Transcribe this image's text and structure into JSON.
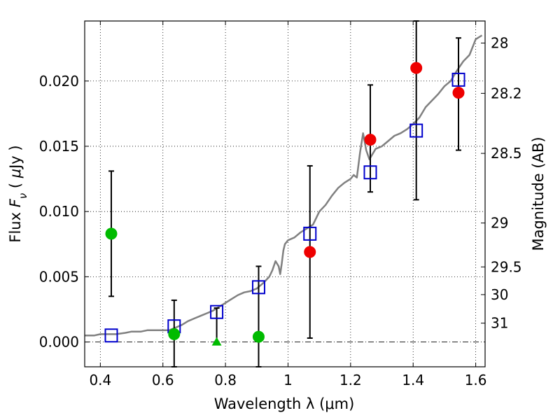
{
  "chart_data": {
    "type": "scatter",
    "xlabel": "Wavelength  λ (μm)",
    "ylabel": "Flux  F_ν  ( μJy )",
    "ylabel_right": "Magnitude (AB)",
    "xlim": [
      0.35,
      1.63
    ],
    "ylim": [
      -0.0019,
      0.0246
    ],
    "grid": true,
    "x_ticks": [
      {
        "value": 0.4,
        "label": "0.4"
      },
      {
        "value": 0.6,
        "label": "0.6"
      },
      {
        "value": 0.8,
        "label": "0.8"
      },
      {
        "value": 1.0,
        "label": "1"
      },
      {
        "value": 1.2,
        "label": "1.2"
      },
      {
        "value": 1.4,
        "label": "1.4"
      },
      {
        "value": 1.6,
        "label": "1.6"
      }
    ],
    "y_ticks": [
      {
        "value": 0.0,
        "label": "0.000"
      },
      {
        "value": 0.005,
        "label": "0.005"
      },
      {
        "value": 0.01,
        "label": "0.010"
      },
      {
        "value": 0.015,
        "label": "0.015"
      },
      {
        "value": 0.02,
        "label": "0.020"
      }
    ],
    "mag_ticks": [
      {
        "value": 28,
        "label": "28"
      },
      {
        "value": 28.2,
        "label": "28.2"
      },
      {
        "value": 28.5,
        "label": "28.5"
      },
      {
        "value": 29,
        "label": "29"
      },
      {
        "value": 29.5,
        "label": "29.5"
      },
      {
        "value": 30,
        "label": "30"
      },
      {
        "value": 31,
        "label": "31"
      }
    ],
    "colors": {
      "template": "#808080",
      "model_box": "#0000cc",
      "detection_green": "#00bb00",
      "detection_red": "#ee0000",
      "errorbar": "#000000"
    },
    "series": [
      {
        "kind": "template_spectrum",
        "x": [
          0.35,
          0.38,
          0.4,
          0.42,
          0.45,
          0.48,
          0.5,
          0.53,
          0.55,
          0.58,
          0.6,
          0.62,
          0.64,
          0.66,
          0.68,
          0.7,
          0.72,
          0.74,
          0.76,
          0.78,
          0.8,
          0.82,
          0.84,
          0.86,
          0.88,
          0.9,
          0.92,
          0.94,
          0.95,
          0.96,
          0.97,
          0.975,
          0.98,
          0.985,
          0.99,
          1.0,
          1.02,
          1.04,
          1.06,
          1.08,
          1.1,
          1.12,
          1.14,
          1.16,
          1.18,
          1.2,
          1.21,
          1.22,
          1.23,
          1.24,
          1.25,
          1.26,
          1.28,
          1.3,
          1.32,
          1.34,
          1.36,
          1.38,
          1.4,
          1.42,
          1.44,
          1.46,
          1.48,
          1.5,
          1.52,
          1.54,
          1.56,
          1.58,
          1.6,
          1.62
        ],
        "values": [
          0.0005,
          0.0005,
          0.0006,
          0.0006,
          0.0006,
          0.0007,
          0.0008,
          0.0008,
          0.0009,
          0.0009,
          0.0009,
          0.0009,
          0.0011,
          0.0013,
          0.0016,
          0.0018,
          0.002,
          0.0022,
          0.0024,
          0.0027,
          0.003,
          0.0033,
          0.0036,
          0.0038,
          0.0039,
          0.0041,
          0.0045,
          0.005,
          0.0055,
          0.0062,
          0.0058,
          0.0052,
          0.006,
          0.007,
          0.0075,
          0.0078,
          0.008,
          0.0084,
          0.0087,
          0.009,
          0.01,
          0.0105,
          0.0112,
          0.0118,
          0.0122,
          0.0125,
          0.0128,
          0.0126,
          0.0145,
          0.016,
          0.0147,
          0.014,
          0.0148,
          0.015,
          0.0154,
          0.0158,
          0.016,
          0.0163,
          0.0167,
          0.0172,
          0.018,
          0.0185,
          0.019,
          0.0196,
          0.02,
          0.0208,
          0.0215,
          0.022,
          0.0232,
          0.0235
        ]
      },
      {
        "kind": "model_boxes",
        "x": [
          0.435,
          0.636,
          0.772,
          0.906,
          1.07,
          1.263,
          1.41,
          1.545
        ],
        "values": [
          0.0005,
          0.0012,
          0.0023,
          0.0042,
          0.0083,
          0.013,
          0.0162,
          0.0201
        ]
      },
      {
        "kind": "detections_green",
        "x": [
          0.435,
          0.636,
          0.906
        ],
        "values": [
          0.0083,
          0.0006,
          0.0004
        ],
        "err_low": [
          0.0035,
          -0.0019,
          -0.0019
        ],
        "err_high": [
          0.0131,
          0.0032,
          0.0058
        ]
      },
      {
        "kind": "upper_limit_green",
        "x": [
          0.772
        ],
        "values": [
          0.0
        ],
        "err_low": [
          0.0
        ],
        "err_high": [
          0.0026
        ]
      },
      {
        "kind": "detections_red",
        "x": [
          1.07,
          1.263,
          1.41,
          1.545
        ],
        "values": [
          0.0069,
          0.0155,
          0.021,
          0.0191
        ],
        "err_low": [
          0.0003,
          0.0115,
          0.0109,
          0.0147
        ],
        "err_high": [
          0.0135,
          0.0197,
          0.0246,
          0.0233
        ]
      }
    ]
  }
}
